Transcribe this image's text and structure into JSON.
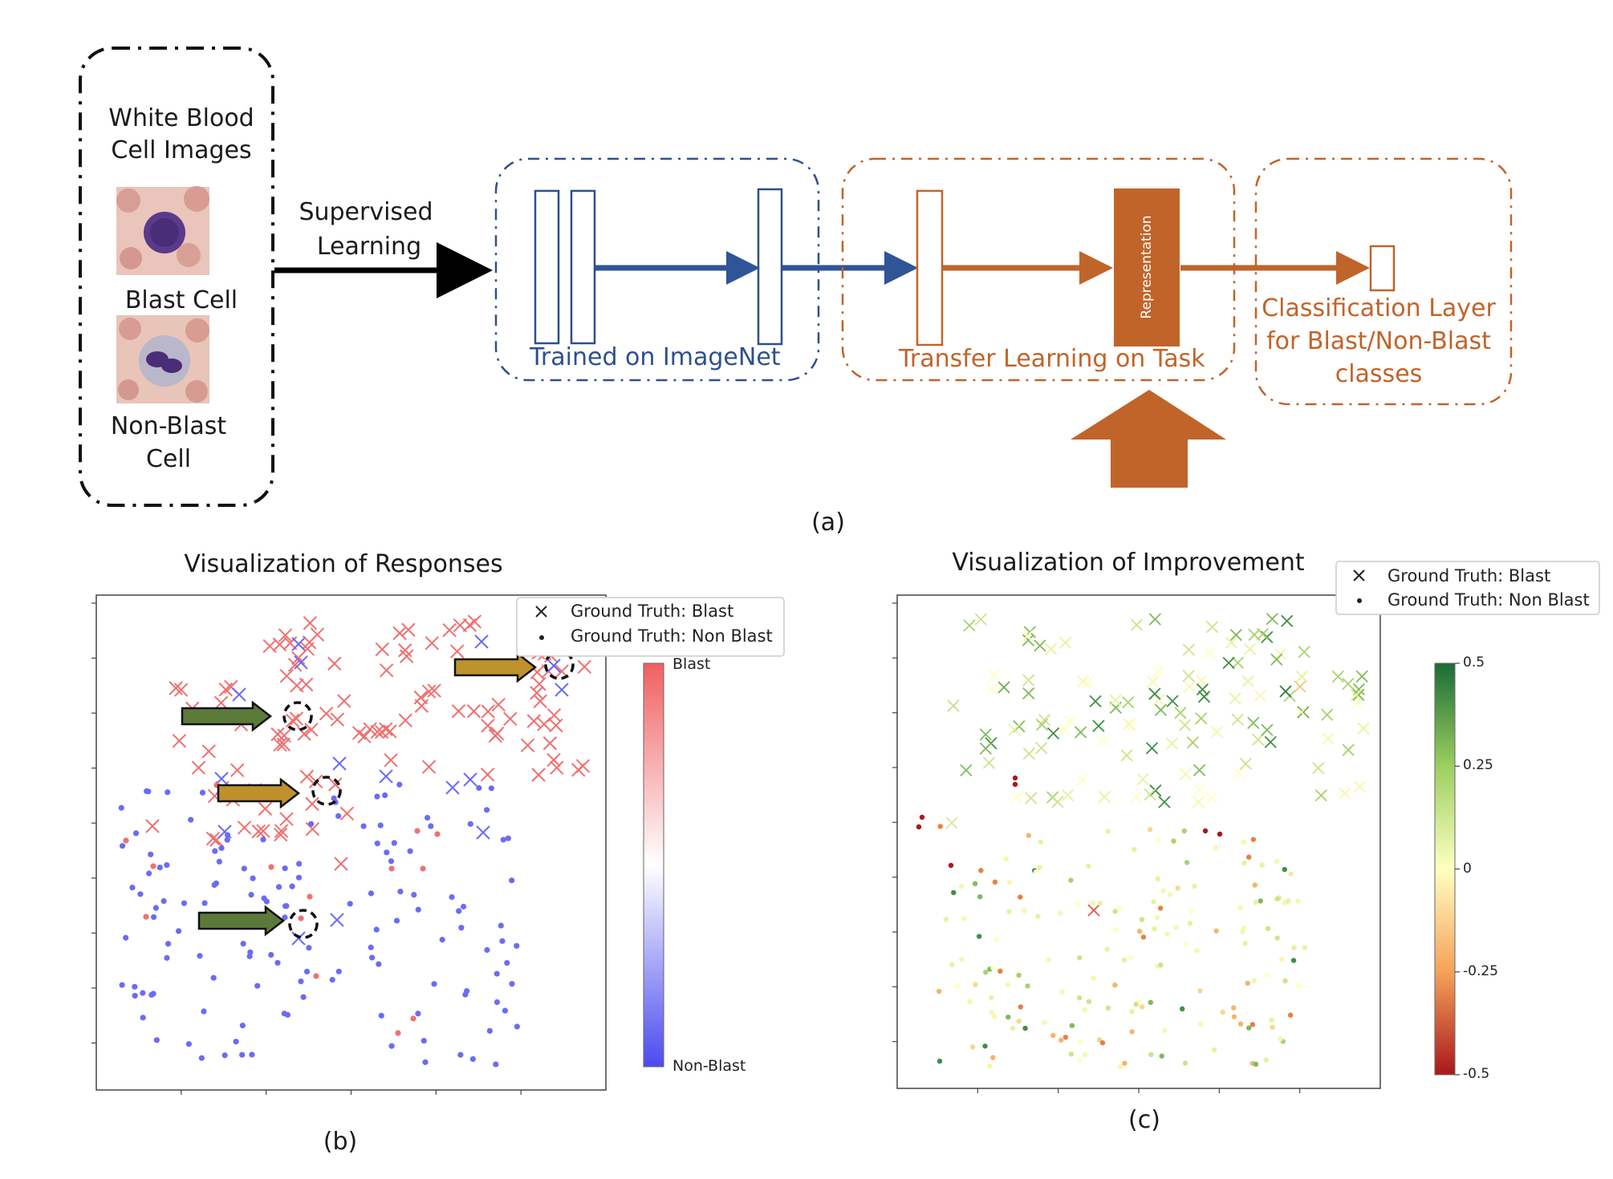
{
  "panel_a": {
    "input_title_line1": "White Blood",
    "input_title_line2": "Cell Images",
    "blast_label": "Blast Cell",
    "nonblast_label_line1": "Non-Blast",
    "nonblast_label_line2": "Cell",
    "arrow_label_line1": "Supervised",
    "arrow_label_line2": "Learning",
    "imagenet_label": "Trained on ImageNet",
    "transfer_label": "Transfer Learning on Task",
    "representation_label": "Representation",
    "classification_line1": "Classification Layer",
    "classification_line2": "for Blast/Non-Blast",
    "classification_line3": "classes",
    "caption": "(a)"
  },
  "panel_b": {
    "title": "Visualization of Responses",
    "legend_blast": "Ground Truth: Blast",
    "legend_nonblast": "Ground Truth: Non Blast",
    "colorbar_top": "Blast",
    "colorbar_bottom": "Non-Blast",
    "caption": "(b)"
  },
  "panel_c": {
    "title": "Visualization of Improvement",
    "legend_blast": "Ground Truth: Blast",
    "legend_nonblast": "Ground Truth: Non Blast",
    "colorbar_ticks": [
      "0.5",
      "0.25",
      "0",
      "-0.25",
      "-0.5"
    ],
    "caption": "(c)"
  },
  "colors": {
    "imagenet_blue": "#2f4f8f",
    "task_orange": "#c0642a",
    "blast_red": "#f07070",
    "nonblast_blue": "#6b6bf5",
    "marker_green": "#5b7a3a",
    "marker_gold": "#bf912c"
  }
}
